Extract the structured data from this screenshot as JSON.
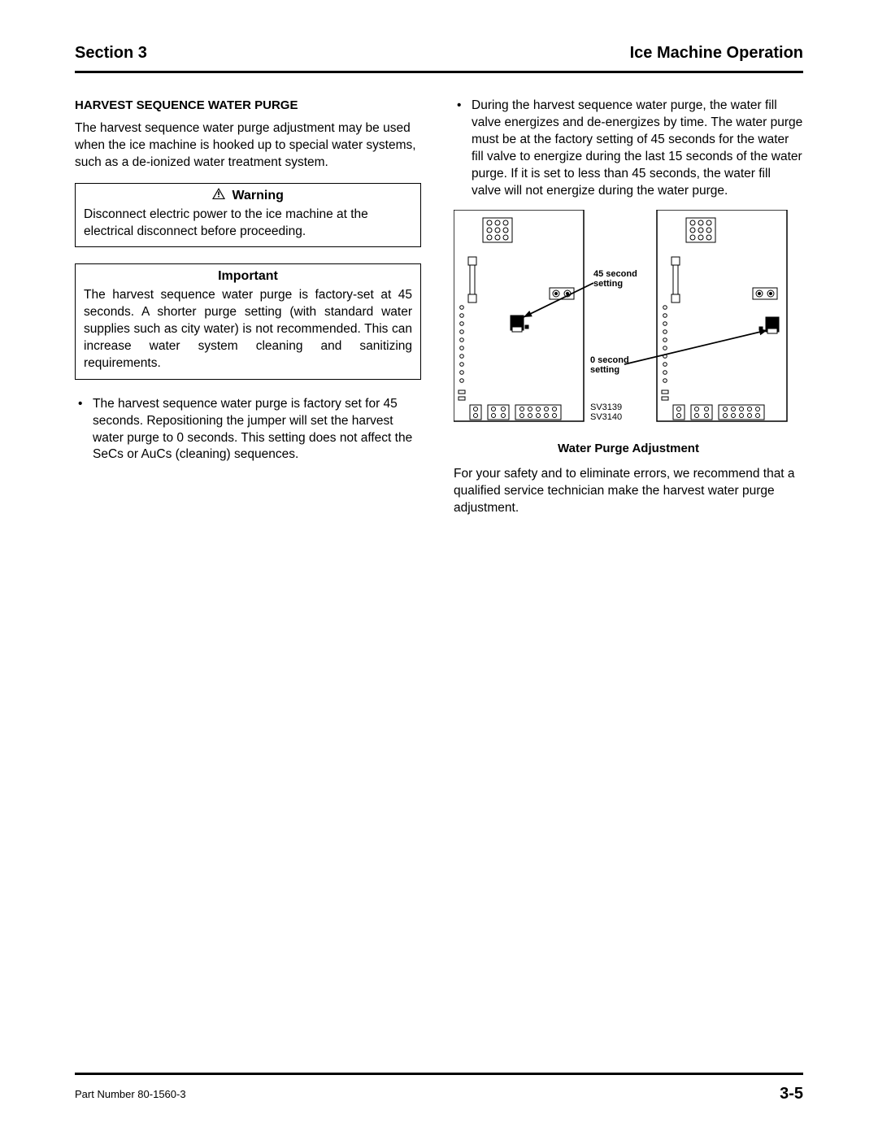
{
  "header": {
    "section_label": "Section 3",
    "title": "Ice Machine Operation"
  },
  "left": {
    "heading": "HARVEST SEQUENCE WATER PURGE",
    "intro": "The harvest sequence water purge adjustment may be used when the ice machine is hooked up to special water systems, such as a de-ionized water treatment system.",
    "warning_title": "Warning",
    "warning_body": "Disconnect electric power to the ice machine at the electrical disconnect before proceeding.",
    "important_title": "Important",
    "important_body": "The harvest sequence water purge is factory-set at 45 seconds. A shorter purge setting (with standard water supplies such as city water) is not recommended. This can increase water system cleaning and sanitizing requirements.",
    "bullet1": "The harvest sequence water purge is factory set for 45 seconds. Repositioning the jumper will set the harvest water purge to 0 seconds. This setting does not affect the SeCs or AuCs (cleaning) sequences."
  },
  "right": {
    "bullet1": "During the harvest sequence water purge, the water fill valve energizes and de-energizes by time. The water purge must be at the factory setting of 45 seconds for the water fill valve to energize during the last 15 seconds of the water purge. If it is set to less than 45 seconds, the water fill valve will not energize during the water purge.",
    "figure_caption": "Water Purge Adjustment",
    "closing": "For your safety and to eliminate errors, we recommend that a qualified service technician make the harvest water purge adjustment."
  },
  "figure": {
    "label_45_line1": "45 second",
    "label_45_line2": "setting",
    "label_0_line1": "0 second",
    "label_0_line2": "setting",
    "ref1": "SV3139",
    "ref2": "SV3140",
    "stroke": "#000000",
    "bg": "#ffffff"
  },
  "footer": {
    "part_number": "Part Number 80-1560-3",
    "page": "3-5"
  }
}
